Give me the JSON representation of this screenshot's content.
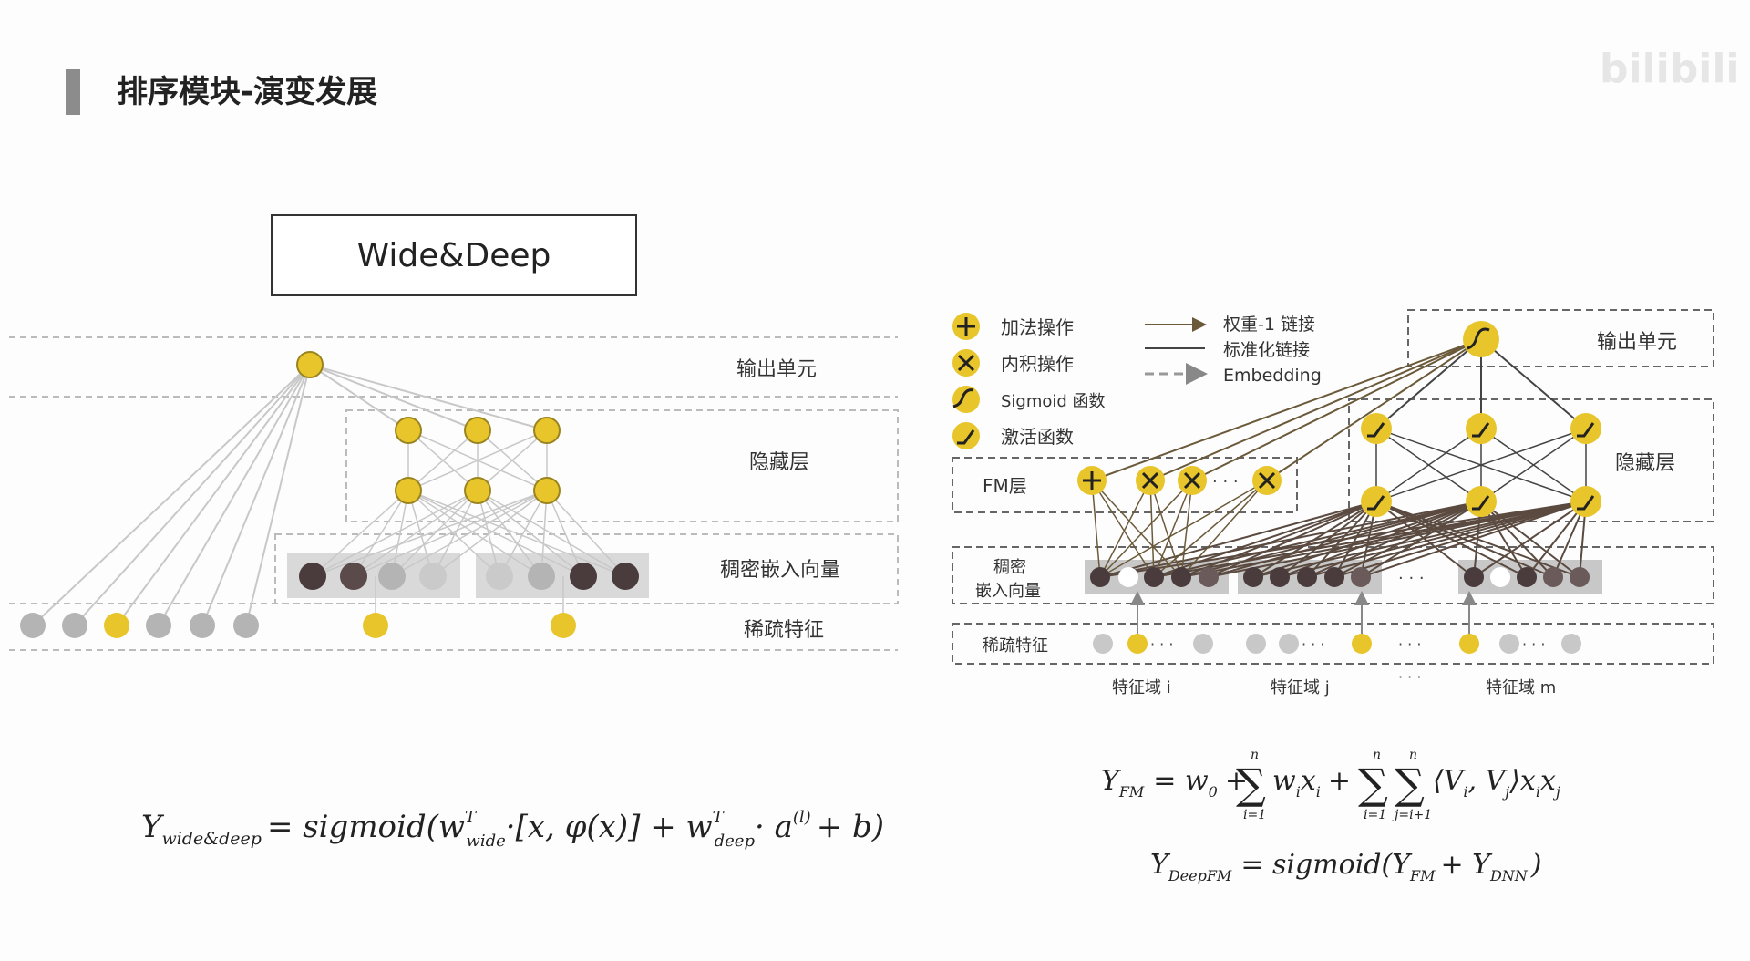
{
  "slide": {
    "title": "排序模块-演变发展",
    "watermark": "bilibili",
    "colors": {
      "yellow": "#e8c52a",
      "grey": "#b4b4b4",
      "dark": "#4a3c3c",
      "accent_bar": "#8c8c8c"
    }
  },
  "wide_deep": {
    "box_title": "Wide&Deep",
    "layers": {
      "output": "输出单元",
      "hidden": "隐藏层",
      "dense": "稠密嵌入向量",
      "sparse": "稀疏特征"
    },
    "formula": {
      "lhs": "Y",
      "lhs_sub": "wide&deep",
      "eq": "= sigmoid(w",
      "w_wide_sup": "T",
      "w_wide_sub": "wide",
      "middle": "·[x, φ(x)] + w",
      "w_deep_sup": "T",
      "w_deep_sub": "deep",
      "tail_a": "· a",
      "a_sup": "(l)",
      "tail_end": "+ b)"
    }
  },
  "deepfm": {
    "legend": {
      "add": "加法操作",
      "inner": "内积操作",
      "sigmoid": "Sigmoid 函数",
      "activation": "激活函数",
      "weight_link": "权重-1 链接",
      "std_link": "标准化链接",
      "embedding": "Embedding"
    },
    "layers": {
      "output": "输出单元",
      "hidden": "隐藏层",
      "fm": "FM层",
      "dense_line1": "稠密",
      "dense_line2": "嵌入向量",
      "sparse": "稀疏特征"
    },
    "fields": [
      "特征域 i",
      "特征域 j",
      "特征域 m"
    ],
    "dots": "· · ·",
    "formula_fm": {
      "lhs": "Y",
      "lhs_sub": "FM",
      "eq": "= w",
      "w0_sub": "0",
      "plus1": "+",
      "sum1_top": "n",
      "sum1_bot": "i=1",
      "term1": "w",
      "term1_sub": "i",
      "term1b": "x",
      "term1b_sub": "i",
      "plus2": "+",
      "sum2_top": "n",
      "sum2_bot": "i=1",
      "sum3_top": "n",
      "sum3_bot": "j=i+1",
      "term2": "⟨V",
      "term2_sub1": "i",
      "term2_mid": ", V",
      "term2_sub2": "j",
      "term2_end": "⟩x",
      "term2_sub3": "i",
      "term2_x": "x",
      "term2_sub4": "j"
    },
    "formula_deepfm": {
      "lhs": "Y",
      "lhs_sub": "DeepFM",
      "eq": "= sigmoid(Y",
      "fm_sub": "FM",
      "plus": "+ Y",
      "dnn_sub": "DNN",
      "end": ")"
    }
  }
}
